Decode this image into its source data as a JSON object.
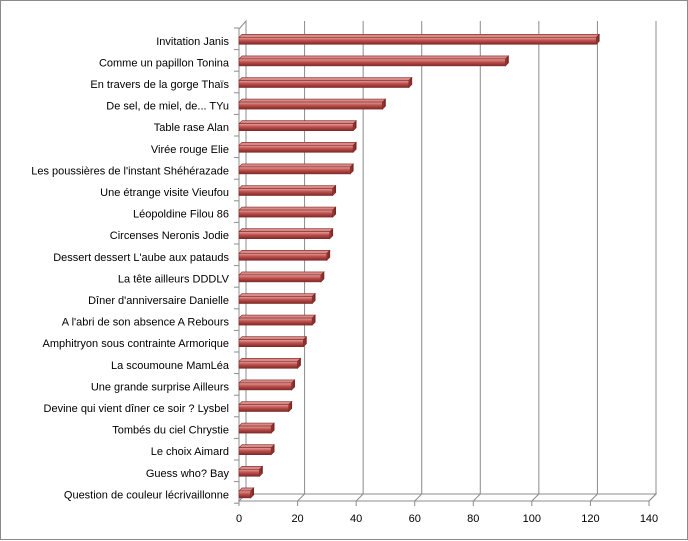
{
  "chart_data": {
    "type": "bar",
    "orientation": "horizontal",
    "style": "3d",
    "categories": [
      "Invitation Janis",
      "Comme un papillon Tonina",
      "En travers de la gorge Thaïs",
      "De sel,  de miel, de... TYu",
      "Table rase Alan",
      "Virée rouge Elie",
      "Les poussières de l'instant Shéhérazade",
      "Une étrange visite Vieufou",
      "Léopoldine Filou 86",
      "Circenses Neronis Jodie",
      "Dessert dessert L'aube aux patauds",
      "La tête ailleurs DDDLV",
      "Dîner d'anniversaire Danielle",
      "A l'abri de son absence A Rebours",
      "Amphitryon sous contrainte Armorique",
      "La scoumoune MamLéa",
      "Une grande surprise Ailleurs",
      "Devine qui vient dîner ce soir ? Lysbel",
      "Tombés du ciel Chrystie",
      "Le choix Aimard",
      "Guess who? Bay",
      "Question de couleur lécrivaillonne"
    ],
    "values": [
      122,
      91,
      58,
      49,
      39,
      39,
      38,
      32,
      32,
      31,
      30,
      28,
      25,
      25,
      22,
      20,
      18,
      17,
      11,
      11,
      7,
      4
    ],
    "xlim": [
      0,
      140
    ],
    "xticks": [
      "0",
      "20",
      "40",
      "60",
      "80",
      "100",
      "120",
      "140"
    ],
    "grid": "vertical",
    "bar_color": "#c0504d"
  }
}
